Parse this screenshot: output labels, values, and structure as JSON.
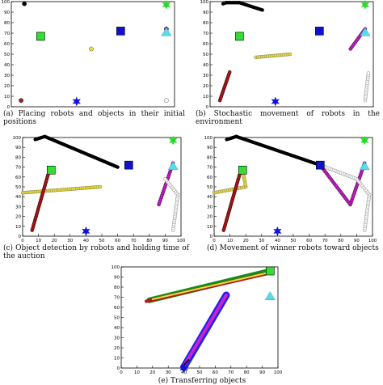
{
  "colors": {
    "trail_black": "#000000",
    "trail_yellow": "#e8dc3c",
    "trail_red": "#b01818",
    "trail_magenta": "#cc22cc",
    "trail_white": "#ffffff",
    "trail_blue": "#2222ee",
    "trail_green": "#1a8a1a",
    "obj_green_square": "#33dd33",
    "obj_blue_square": "#1111cc",
    "obj_blue_star": "#1111dd",
    "obj_green_star": "#22dd22",
    "obj_cyan_triangle": "#55ddee"
  },
  "chart_data": [
    {
      "type": "scatter",
      "panel": "a",
      "caption": "(a) Placing robots and objects in their initial positions",
      "xlim": [
        0,
        100
      ],
      "ylim": [
        0,
        100
      ],
      "xticks": [
        0,
        10,
        20,
        30,
        40,
        50,
        60,
        70,
        80,
        90,
        100
      ],
      "yticks": [
        0,
        10,
        20,
        30,
        40,
        50,
        60,
        70,
        80,
        90,
        100
      ],
      "show_xticks": false,
      "objects": [
        {
          "shape": "square",
          "color": "obj_green_square",
          "x": 18,
          "y": 67
        },
        {
          "shape": "square",
          "color": "obj_blue_square",
          "x": 67,
          "y": 72
        },
        {
          "shape": "star",
          "color": "obj_blue_star",
          "x": 40,
          "y": 5
        },
        {
          "shape": "star",
          "color": "obj_green_star",
          "x": 95,
          "y": 97
        },
        {
          "shape": "triangle",
          "color": "obj_cyan_triangle",
          "x": 95,
          "y": 71
        }
      ],
      "trails": [
        {
          "color": "trail_black",
          "points": [
            [
              8,
              98
            ]
          ]
        },
        {
          "color": "trail_yellow",
          "points": [
            [
              49,
              55
            ]
          ]
        },
        {
          "color": "trail_red",
          "points": [
            [
              6,
              6
            ]
          ]
        },
        {
          "color": "trail_magenta",
          "points": [
            [
              95,
              74
            ]
          ]
        },
        {
          "color": "trail_white",
          "points": [
            [
              95,
              6
            ]
          ]
        }
      ]
    },
    {
      "type": "scatter",
      "panel": "b",
      "caption": "(b) Stochastic movement of robots in the environment",
      "xlim": [
        0,
        100
      ],
      "ylim": [
        0,
        100
      ],
      "xticks": [
        0,
        10,
        20,
        30,
        40,
        50,
        60,
        70,
        80,
        90,
        100
      ],
      "yticks": [
        0,
        10,
        20,
        30,
        40,
        50,
        60,
        70,
        80,
        90,
        100
      ],
      "show_xticks": false,
      "objects": [
        {
          "shape": "square",
          "color": "obj_green_square",
          "x": 18,
          "y": 67
        },
        {
          "shape": "square",
          "color": "obj_blue_square",
          "x": 67,
          "y": 72
        },
        {
          "shape": "star",
          "color": "obj_blue_star",
          "x": 40,
          "y": 5
        },
        {
          "shape": "star",
          "color": "obj_green_star",
          "x": 95,
          "y": 97
        },
        {
          "shape": "triangle",
          "color": "obj_cyan_triangle",
          "x": 95,
          "y": 71
        }
      ],
      "trails": [
        {
          "color": "trail_black",
          "points": [
            [
              8,
              98
            ],
            [
              10,
              99
            ],
            [
              18,
              99
            ],
            [
              32,
              92
            ]
          ]
        },
        {
          "color": "trail_yellow",
          "points": [
            [
              28,
              47
            ],
            [
              49,
              50
            ]
          ]
        },
        {
          "color": "trail_red",
          "points": [
            [
              6,
              6
            ],
            [
              12,
              33
            ]
          ]
        },
        {
          "color": "trail_magenta",
          "points": [
            [
              86,
              55
            ],
            [
              95,
              74
            ]
          ]
        },
        {
          "color": "trail_white",
          "points": [
            [
              95,
              6
            ],
            [
              97,
              32
            ]
          ]
        }
      ]
    },
    {
      "type": "scatter",
      "panel": "c",
      "caption": "(c) Object detection by robots and holding time of the auction",
      "xlim": [
        0,
        100
      ],
      "ylim": [
        0,
        100
      ],
      "xticks": [
        0,
        10,
        20,
        30,
        40,
        50,
        60,
        70,
        80,
        90,
        100
      ],
      "yticks": [
        0,
        10,
        20,
        30,
        40,
        50,
        60,
        70,
        80,
        90,
        100
      ],
      "show_xticks": true,
      "objects": [
        {
          "shape": "square",
          "color": "obj_green_square",
          "x": 18,
          "y": 67
        },
        {
          "shape": "square",
          "color": "obj_blue_square",
          "x": 67,
          "y": 72
        },
        {
          "shape": "star",
          "color": "obj_blue_star",
          "x": 40,
          "y": 5
        },
        {
          "shape": "star",
          "color": "obj_green_star",
          "x": 95,
          "y": 97
        },
        {
          "shape": "triangle",
          "color": "obj_cyan_triangle",
          "x": 95,
          "y": 71
        }
      ],
      "trails": [
        {
          "color": "trail_black",
          "points": [
            [
              8,
              98
            ],
            [
              14,
              101
            ],
            [
              60,
              70
            ]
          ]
        },
        {
          "color": "trail_yellow",
          "points": [
            [
              0,
              44
            ],
            [
              49,
              50
            ]
          ]
        },
        {
          "color": "trail_red",
          "points": [
            [
              6,
              6
            ],
            [
              16,
              62
            ]
          ]
        },
        {
          "color": "trail_magenta",
          "points": [
            [
              86,
              32
            ],
            [
              95,
              74
            ]
          ]
        },
        {
          "color": "trail_white",
          "points": [
            [
              95,
              6
            ],
            [
              98,
              42
            ],
            [
              90,
              58
            ]
          ]
        }
      ]
    },
    {
      "type": "scatter",
      "panel": "d",
      "caption": "(d) Movement of winner robots toward objects",
      "xlim": [
        0,
        100
      ],
      "ylim": [
        0,
        100
      ],
      "xticks": [
        0,
        10,
        20,
        30,
        40,
        50,
        60,
        70,
        80,
        90,
        100
      ],
      "yticks": [
        0,
        10,
        20,
        30,
        40,
        50,
        60,
        70,
        80,
        90,
        100
      ],
      "show_xticks": true,
      "objects": [
        {
          "shape": "square",
          "color": "obj_green_square",
          "x": 18,
          "y": 67
        },
        {
          "shape": "square",
          "color": "obj_blue_square",
          "x": 67,
          "y": 72
        },
        {
          "shape": "star",
          "color": "obj_blue_star",
          "x": 40,
          "y": 5
        },
        {
          "shape": "star",
          "color": "obj_green_star",
          "x": 95,
          "y": 97
        },
        {
          "shape": "triangle",
          "color": "obj_cyan_triangle",
          "x": 95,
          "y": 71
        }
      ],
      "trails": [
        {
          "color": "trail_black",
          "points": [
            [
              8,
              98
            ],
            [
              14,
              101
            ],
            [
              67,
              72
            ]
          ]
        },
        {
          "color": "trail_yellow",
          "points": [
            [
              0,
              44
            ],
            [
              20,
              50
            ],
            [
              18,
              67
            ]
          ]
        },
        {
          "color": "trail_red",
          "points": [
            [
              6,
              6
            ],
            [
              16,
              62
            ]
          ]
        },
        {
          "color": "trail_magenta",
          "points": [
            [
              95,
              74
            ],
            [
              86,
              32
            ],
            [
              67,
              72
            ]
          ]
        },
        {
          "color": "trail_white",
          "points": [
            [
              95,
              6
            ],
            [
              98,
              42
            ],
            [
              90,
              58
            ],
            [
              67,
              72
            ]
          ]
        }
      ]
    },
    {
      "type": "scatter",
      "panel": "e",
      "caption": "(e) Transferring objects",
      "xlim": [
        0,
        100
      ],
      "ylim": [
        0,
        100
      ],
      "xticks": [
        0,
        10,
        20,
        30,
        40,
        50,
        60,
        70,
        80,
        90,
        100
      ],
      "yticks": [
        0,
        10,
        20,
        30,
        40,
        50,
        60,
        70,
        80,
        90,
        100
      ],
      "show_xticks": true,
      "objects": [
        {
          "shape": "triangle",
          "color": "obj_cyan_triangle",
          "x": 95,
          "y": 71
        },
        {
          "shape": "square",
          "color": "obj_green_square",
          "x": 95,
          "y": 96
        },
        {
          "shape": "star",
          "color": "obj_blue_star",
          "x": 40,
          "y": 0
        }
      ],
      "trails": [
        {
          "color": "trail_green",
          "width": 7,
          "points": [
            [
              18,
              67
            ],
            [
              95,
              96
            ]
          ]
        },
        {
          "color": "trail_red",
          "width": 4,
          "points": [
            [
              16,
              66
            ],
            [
              92,
              93
            ]
          ]
        },
        {
          "color": "trail_yellow",
          "width": 2,
          "points": [
            [
              20,
              68
            ],
            [
              93,
              94
            ]
          ]
        },
        {
          "color": "trail_blue",
          "width": 9,
          "points": [
            [
              40,
              1
            ],
            [
              67,
              72
            ]
          ]
        },
        {
          "color": "trail_magenta",
          "width": 4,
          "points": [
            [
              40,
              2
            ],
            [
              67,
              72
            ]
          ]
        },
        {
          "color": "trail_black",
          "width": 2,
          "points": [
            [
              39,
              1
            ],
            [
              43,
              8
            ]
          ]
        }
      ]
    }
  ]
}
